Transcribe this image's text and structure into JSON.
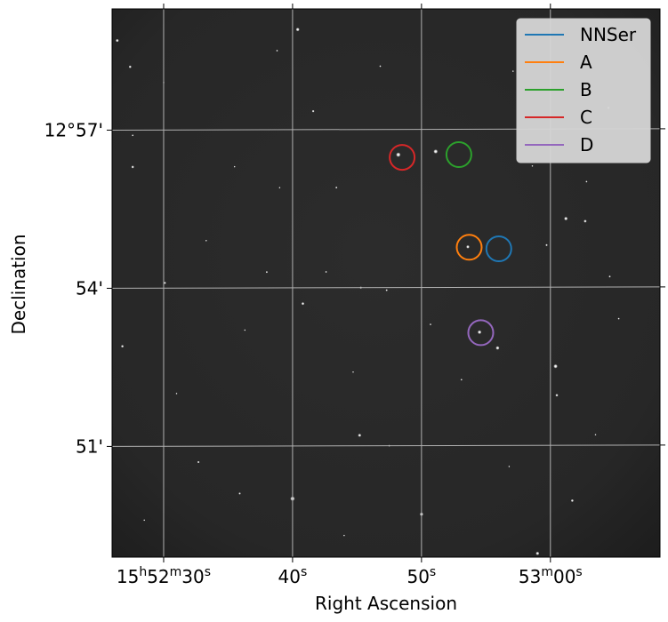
{
  "chart_data": {
    "type": "scatter",
    "title": "",
    "xlabel": "Right Ascension",
    "ylabel": "Declination",
    "grid": true,
    "legend_position": "top-right",
    "x_ticks": [
      {
        "sec": 30,
        "parts": [
          [
            "15",
            ""
          ],
          [
            "h",
            "sup"
          ],
          [
            "52",
            ""
          ],
          [
            "m",
            "sup"
          ],
          [
            "30",
            ""
          ],
          [
            "s",
            "sup"
          ]
        ]
      },
      {
        "sec": 40,
        "parts": [
          [
            "40",
            ""
          ],
          [
            "s",
            "sup"
          ]
        ]
      },
      {
        "sec": 50,
        "parts": [
          [
            "50",
            ""
          ],
          [
            "s",
            "sup"
          ]
        ]
      },
      {
        "sec": 60,
        "parts": [
          [
            "53",
            ""
          ],
          [
            "m",
            "sup"
          ],
          [
            "00",
            ""
          ],
          [
            "s",
            "sup"
          ]
        ]
      }
    ],
    "y_ticks": [
      {
        "arcmin": 57,
        "label": "12°57'"
      },
      {
        "arcmin": 54,
        "label": "54'"
      },
      {
        "arcmin": 51,
        "label": "51'"
      }
    ],
    "xlim_sec": [
      26,
      68.5
    ],
    "ylim_arcmin": [
      48.9,
      59.3
    ],
    "series": [
      {
        "name": "NNSer",
        "color": "#1f77b4",
        "ra_sec": 56.0,
        "dec_arcmin": 54.73
      },
      {
        "name": "A",
        "color": "#ff7f0e",
        "ra_sec": 53.7,
        "dec_arcmin": 54.76
      },
      {
        "name": "B",
        "color": "#2ca02c",
        "ra_sec": 52.9,
        "dec_arcmin": 56.52
      },
      {
        "name": "C",
        "color": "#d62728",
        "ra_sec": 48.5,
        "dec_arcmin": 56.47
      },
      {
        "name": "D",
        "color": "#9467bd",
        "ra_sec": 54.6,
        "dec_arcmin": 53.14
      }
    ],
    "stars": [
      [
        51.1,
        56.58,
        2.4
      ],
      [
        48.2,
        56.52,
        2.6
      ],
      [
        53.6,
        54.77,
        1.9
      ],
      [
        54.5,
        53.15,
        2.2
      ],
      [
        55.9,
        52.85,
        2.1
      ],
      [
        60.4,
        52.5,
        2.3
      ],
      [
        60.5,
        51.95,
        1.6
      ],
      [
        45.2,
        51.2,
        1.9
      ],
      [
        40.0,
        50.0,
        2.6
      ],
      [
        50.0,
        49.7,
        2.1
      ],
      [
        59.0,
        48.95,
        2.0
      ],
      [
        61.7,
        49.95,
        1.6
      ],
      [
        35.9,
        50.1,
        1.3
      ],
      [
        36.9,
        48.7,
        1.6
      ],
      [
        26.4,
        58.7,
        1.8
      ],
      [
        27.4,
        58.2,
        1.6
      ],
      [
        40.4,
        58.9,
        2.1
      ],
      [
        41.6,
        57.35,
        1.4
      ],
      [
        61.2,
        55.3,
        2.1
      ],
      [
        62.7,
        55.25,
        1.7
      ],
      [
        27.6,
        56.3,
        1.6
      ],
      [
        43.4,
        55.9,
        1.2
      ],
      [
        40.8,
        53.7,
        1.7
      ],
      [
        26.8,
        52.9,
        1.6
      ],
      [
        30.1,
        54.1,
        1.4
      ],
      [
        38.0,
        54.3,
        1.2
      ],
      [
        42.6,
        54.3,
        1.1
      ],
      [
        45.3,
        54.0,
        1.3
      ],
      [
        47.3,
        53.95,
        1.2
      ],
      [
        64.5,
        57.4,
        1.7
      ],
      [
        59.7,
        54.8,
        1.3
      ],
      [
        62.8,
        56.0,
        1.1
      ],
      [
        30.0,
        57.9,
        1.0
      ],
      [
        33.3,
        54.9,
        1.0
      ],
      [
        27.6,
        56.9,
        1.1
      ],
      [
        38.8,
        58.5,
        1.1
      ],
      [
        46.8,
        58.2,
        1.1
      ],
      [
        57.1,
        58.1,
        1.0
      ],
      [
        64.6,
        54.2,
        1.2
      ],
      [
        32.7,
        50.7,
        1.3
      ],
      [
        47.5,
        51.0,
        1.1
      ],
      [
        65.3,
        53.4,
        1.1
      ],
      [
        28.5,
        49.6,
        1.0
      ],
      [
        53.1,
        52.25,
        1.1
      ],
      [
        44.7,
        52.4,
        1.0
      ],
      [
        35.5,
        56.3,
        1.0
      ],
      [
        39.0,
        55.9,
        1.0
      ],
      [
        50.7,
        53.3,
        1.1
      ],
      [
        56.8,
        50.6,
        1.0
      ],
      [
        31.0,
        52.0,
        1.0
      ],
      [
        63.5,
        51.2,
        1.0
      ],
      [
        44.0,
        49.3,
        1.0
      ],
      [
        36.3,
        53.2,
        1.0
      ],
      [
        58.6,
        56.3,
        1.0
      ]
    ]
  }
}
